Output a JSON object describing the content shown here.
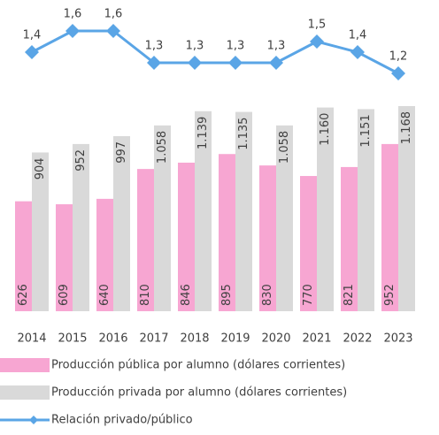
{
  "chart_data": {
    "type": "bar",
    "categories": [
      "2014",
      "2015",
      "2016",
      "2017",
      "2018",
      "2019",
      "2020",
      "2021",
      "2022",
      "2023"
    ],
    "series": [
      {
        "name": "Producción pública por alumno (dólares corrientes)",
        "color": "#f7a6d2",
        "values": [
          626,
          609,
          640,
          810,
          846,
          895,
          830,
          770,
          821,
          952
        ]
      },
      {
        "name": "Producción privada por alumno (dólares corrientes)",
        "color": "#d9d9d9",
        "values": [
          904,
          952,
          997,
          1058,
          1139,
          1135,
          1058,
          1160,
          1151,
          1168
        ],
        "value_labels": [
          "904",
          "952",
          "997",
          "1.058",
          "1.139",
          "1.135",
          "1.058",
          "1.160",
          "1.151",
          "1.168"
        ]
      },
      {
        "name": "Relación privado/público",
        "type": "line",
        "color": "#5aa5e6",
        "values": [
          1.4,
          1.6,
          1.6,
          1.3,
          1.3,
          1.3,
          1.3,
          1.5,
          1.4,
          1.2
        ],
        "value_labels": [
          "1,4",
          "1,6",
          "1,6",
          "1,3",
          "1,3",
          "1,3",
          "1,3",
          "1,5",
          "1,4",
          "1,2"
        ]
      }
    ]
  }
}
